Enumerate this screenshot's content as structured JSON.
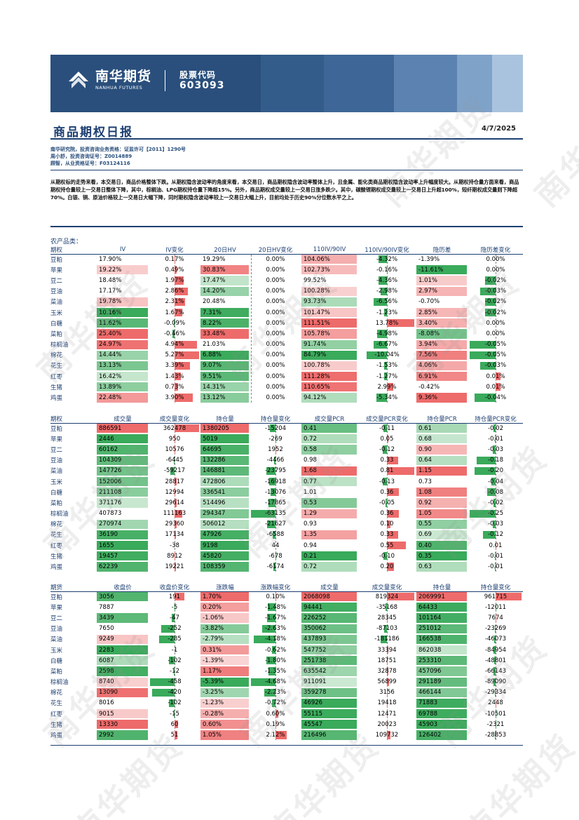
{
  "header": {
    "company_cn": "南华期货",
    "company_en": "NANHUA FUTURES",
    "stock_label": "股票代码",
    "stock_code": "603093"
  },
  "title": "商品期权日报",
  "date": "4/7/2025",
  "authors": [
    "南华研究院，投资咨询业务资格：证监许可【2011】1290号",
    "周小舒，投资咨询证号：Z0014889",
    "顾智，从业资格证号：F03124116"
  ],
  "summary": "从期权标的走势来看，本交易日，商品价格整体下跌。从期权隐含波动率的角度来看，本交易日，商品期权隐含波动率整体上升，且金属、能化类商品期权隐含波动率上升幅度较大。从期权持仓量方面来看，商品期权持仓量较上一交易日整体下降，其中，棕榈油、LPG期权持仓量下降超15%。另外，商品期权成交量较上一交易日涨多跌少。其中，碳酸锂期权成交量较上一交易日上升超100%，短纤期权成交量则下降超70%。白银、铜、原油价格较上一交易日大幅下降，同时期权隐含波动率较上一交易日大幅上升，目前均处于历史90%分位数水平之上。",
  "section_label": "农产品类：",
  "colors": {
    "red_strong": "#ee6b6b",
    "red_light": "#f8caca",
    "green_strong": "#3aaa5b",
    "green_light": "#c8e8cf",
    "navy": "#1d3f72"
  },
  "table1": {
    "headers": [
      "期权",
      "IV",
      "IV变化",
      "20日HV",
      "20日HV变化",
      "110IV/90IV",
      "110IV/90IV变化",
      "隐历差",
      "隐历差变化"
    ],
    "rows": [
      [
        "豆粕",
        "17.90%",
        "0.17%",
        "19.29%",
        "0.00%",
        "104.06%",
        "-4.32%",
        "-1.39%",
        "0.00%"
      ],
      [
        "苹果",
        "19.22%",
        "0.49%",
        "30.83%",
        "0.00%",
        "102.73%",
        "-0.16%",
        "-11.61%",
        "0.00%"
      ],
      [
        "豆二",
        "18.48%",
        "1.97%",
        "17.47%",
        "0.00%",
        "99.52%",
        "-4.36%",
        "1.01%",
        "-0.02%"
      ],
      [
        "豆油",
        "17.17%",
        "2.86%",
        "14.20%",
        "0.00%",
        "100.28%",
        "-2.98%",
        "2.97%",
        "-0.03%"
      ],
      [
        "菜油",
        "19.78%",
        "2.31%",
        "20.48%",
        "0.00%",
        "93.73%",
        "-6.56%",
        "-0.70%",
        "-0.02%"
      ],
      [
        "玉米",
        "10.16%",
        "1.67%",
        "7.31%",
        "0.00%",
        "101.47%",
        "-1.23%",
        "2.85%",
        "-0.02%"
      ],
      [
        "白糖",
        "11.62%",
        "-0.09%",
        "8.22%",
        "0.00%",
        "111.51%",
        "13.78%",
        "3.40%",
        "0.00%"
      ],
      [
        "菜粕",
        "25.40%",
        "-0.46%",
        "33.48%",
        "0.00%",
        "105.78%",
        "-4.98%",
        "-8.08%",
        "0.00%"
      ],
      [
        "棕榈油",
        "24.97%",
        "4.94%",
        "21.03%",
        "0.00%",
        "91.74%",
        "-6.67%",
        "3.94%",
        "-0.05%"
      ],
      [
        "棉花",
        "14.44%",
        "5.27%",
        "6.88%",
        "0.00%",
        "84.79%",
        "-10.04%",
        "7.56%",
        "-0.05%"
      ],
      [
        "花生",
        "13.13%",
        "3.39%",
        "9.07%",
        "0.00%",
        "100.78%",
        "-1.53%",
        "4.06%",
        "-0.03%"
      ],
      [
        "红枣",
        "16.42%",
        "1.43%",
        "9.51%",
        "0.00%",
        "111.28%",
        "-1.27%",
        "6.91%",
        "0.01%"
      ],
      [
        "生猪",
        "13.89%",
        "0.73%",
        "14.31%",
        "0.00%",
        "110.65%",
        "2.99%",
        "-0.42%",
        "0.01%"
      ],
      [
        "鸡蛋",
        "22.48%",
        "3.90%",
        "13.12%",
        "0.00%",
        "94.12%",
        "-5.34%",
        "9.36%",
        "-0.04%"
      ]
    ]
  },
  "table2": {
    "headers": [
      "期权",
      "成交量",
      "成交量变化",
      "持仓量",
      "持仓量变化",
      "成交量PCR",
      "成交量PCR变化",
      "持仓量PCR",
      "持仓量PCR变化"
    ],
    "rows": [
      [
        "豆粕",
        "886591",
        "362478",
        "1380205",
        "-15204",
        "0.41",
        "-0.11",
        "0.61",
        "-0.02"
      ],
      [
        "苹果",
        "2446",
        "950",
        "5019",
        "-269",
        "0.72",
        "0.05",
        "0.68",
        "-0.01"
      ],
      [
        "豆二",
        "60162",
        "10576",
        "64695",
        "1952",
        "0.58",
        "-0.12",
        "0.90",
        "-0.03"
      ],
      [
        "豆油",
        "104309",
        "-6445",
        "132286",
        "-4466",
        "0.98",
        "0.33",
        "0.64",
        "-0.18"
      ],
      [
        "菜油",
        "147726",
        "-59217",
        "146881",
        "-23795",
        "1.68",
        "0.81",
        "1.15",
        "-0.20"
      ],
      [
        "玉米",
        "152006",
        "28817",
        "472806",
        "-16918",
        "0.77",
        "-0.13",
        "0.73",
        "-0.04"
      ],
      [
        "白糖",
        "211108",
        "12994",
        "336541",
        "-13076",
        "1.01",
        "0.36",
        "1.08",
        "-0.08"
      ],
      [
        "菜粕",
        "371176",
        "29614",
        "514496",
        "-17865",
        "0.53",
        "-0.05",
        "0.92",
        "-0.02"
      ],
      [
        "棕榈油",
        "407873",
        "111163",
        "294347",
        "-63135",
        "1.29",
        "0.36",
        "1.05",
        "-0.25"
      ],
      [
        "棉花",
        "270974",
        "29360",
        "506012",
        "-21627",
        "0.93",
        "0.10",
        "0.55",
        "-0.03"
      ],
      [
        "花生",
        "36190",
        "17134",
        "47926",
        "-6588",
        "1.35",
        "0.33",
        "0.69",
        "-0.12"
      ],
      [
        "红枣",
        "1655",
        "-38",
        "9198",
        "44",
        "0.94",
        "0.55",
        "0.40",
        "0.01"
      ],
      [
        "生猪",
        "19457",
        "8912",
        "45820",
        "-678",
        "0.21",
        "-0.10",
        "0.35",
        "-0.01"
      ],
      [
        "鸡蛋",
        "62239",
        "19221",
        "108359",
        "-6174",
        "0.72",
        "0.20",
        "0.63",
        "-0.01"
      ]
    ]
  },
  "table3": {
    "headers": [
      "期货",
      "收盘价",
      "收盘价变化",
      "涨跌幅",
      "涨跌幅变化",
      "成交量",
      "成交量变化",
      "持仓量",
      "持仓量变化"
    ],
    "rows": [
      [
        "豆粕",
        "3056",
        "191",
        "1.70%",
        "0.10%",
        "2068098",
        "819324",
        "2069991",
        "961715"
      ],
      [
        "苹果",
        "7887",
        "-5",
        "0.20%",
        "-1.48%",
        "94441",
        "-35168",
        "64433",
        "-12011"
      ],
      [
        "豆二",
        "3439",
        "-47",
        "-1.06%",
        "-1.67%",
        "226252",
        "28345",
        "101164",
        "7674"
      ],
      [
        "豆油",
        "7650",
        "-252",
        "-3.82%",
        "-2.63%",
        "350062",
        "-87103",
        "251012",
        "-23269"
      ],
      [
        "菜油",
        "9249",
        "-285",
        "-2.79%",
        "-4.18%",
        "437893",
        "-181186",
        "166538",
        "-46073"
      ],
      [
        "玉米",
        "2283",
        "-1",
        "0.31%",
        "-0.62%",
        "547752",
        "33394",
        "862038",
        "-84954"
      ],
      [
        "白糖",
        "6087",
        "-102",
        "-1.39%",
        "-1.80%",
        "251738",
        "18751",
        "253310",
        "-48801"
      ],
      [
        "菜粕",
        "2598",
        "-12",
        "1.17%",
        "-1.35%",
        "635542",
        "32878",
        "457096",
        "-66143"
      ],
      [
        "棕榈油",
        "8740",
        "-458",
        "-5.39%",
        "-4.68%",
        "911091",
        "56899",
        "291189",
        "-89090"
      ],
      [
        "棉花",
        "13090",
        "-420",
        "-3.25%",
        "-2.23%",
        "359278",
        "3156",
        "466144",
        "-29334"
      ],
      [
        "花生",
        "8016",
        "-102",
        "-1.23%",
        "-0.72%",
        "46926",
        "19418",
        "71883",
        "2448"
      ],
      [
        "红枣",
        "9015",
        "-15",
        "-0.28%",
        "0.60%",
        "55115",
        "12471",
        "69788",
        "-10501"
      ],
      [
        "生猪",
        "13330",
        "60",
        "0.60%",
        "0.19%",
        "45547",
        "20023",
        "45903",
        "-2321"
      ],
      [
        "鸡蛋",
        "2992",
        "51",
        "1.05%",
        "2.12%",
        "216496",
        "109732",
        "126402",
        "-28853"
      ]
    ]
  },
  "watermark_text": "南华期货"
}
